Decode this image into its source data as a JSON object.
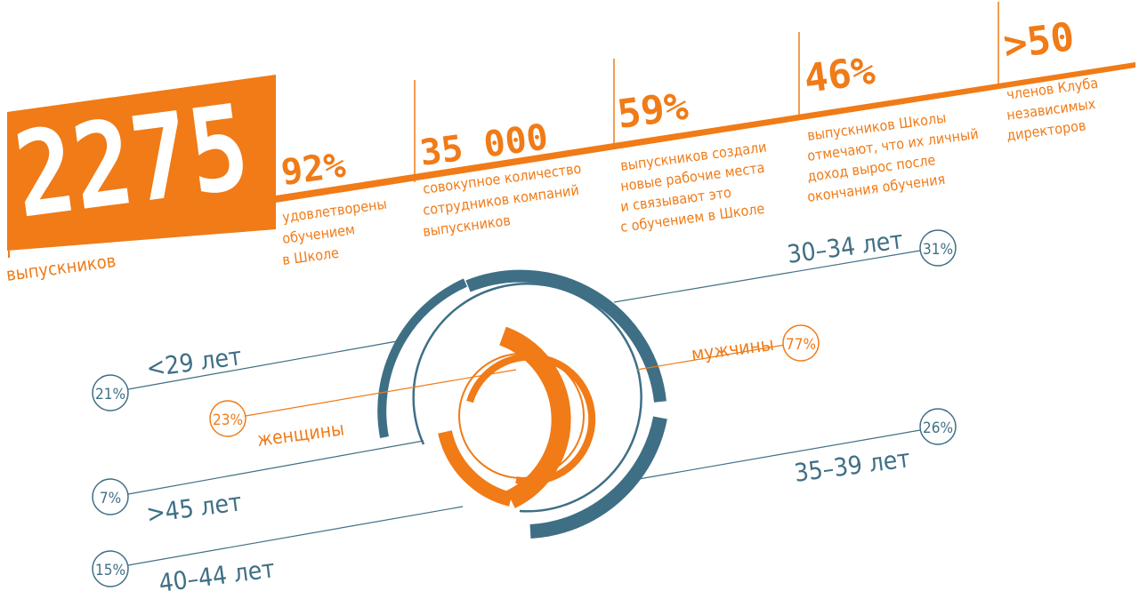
{
  "colors": {
    "orange": "#f07b17",
    "blue": "#3f6f85",
    "white": "#ffffff"
  },
  "top_stats": {
    "graduates": {
      "value": "2275",
      "label": "выпускников"
    },
    "satisfied": {
      "value": "92%",
      "label": [
        "удовлетворены",
        "обучением",
        "в Школе"
      ]
    },
    "employees": {
      "value": "35 000",
      "label": [
        "совокупное количество",
        "сотрудников компаний",
        "выпускников"
      ]
    },
    "jobs": {
      "value": "59%",
      "label": [
        "выпускников создали",
        "новые рабочие места",
        "и связывают это",
        "с обучением в Школе"
      ]
    },
    "income": {
      "value": "46%",
      "label": [
        "выпускников Школы",
        "отмечают, что их личный",
        "доход вырос после",
        "окончания обучения"
      ]
    },
    "club": {
      "value": ">50",
      "label": [
        "членов Клуба",
        "независимых",
        "директоров"
      ]
    }
  },
  "gender": [
    {
      "label": "мужчины",
      "percent": "77%",
      "share": 77
    },
    {
      "label": "женщины",
      "percent": "23%",
      "share": 23
    }
  ],
  "age_groups": [
    {
      "label": "30–34 лет",
      "percent": "31%",
      "share": 31
    },
    {
      "label": "<29 лет",
      "percent": "21%",
      "share": 21
    },
    {
      "label": "35–39 лет",
      "percent": "26%",
      "share": 26
    },
    {
      "label": ">45 лет",
      "percent": "7%",
      "share": 7
    },
    {
      "label": "40–44 лет",
      "percent": "15%",
      "share": 15
    }
  ]
}
